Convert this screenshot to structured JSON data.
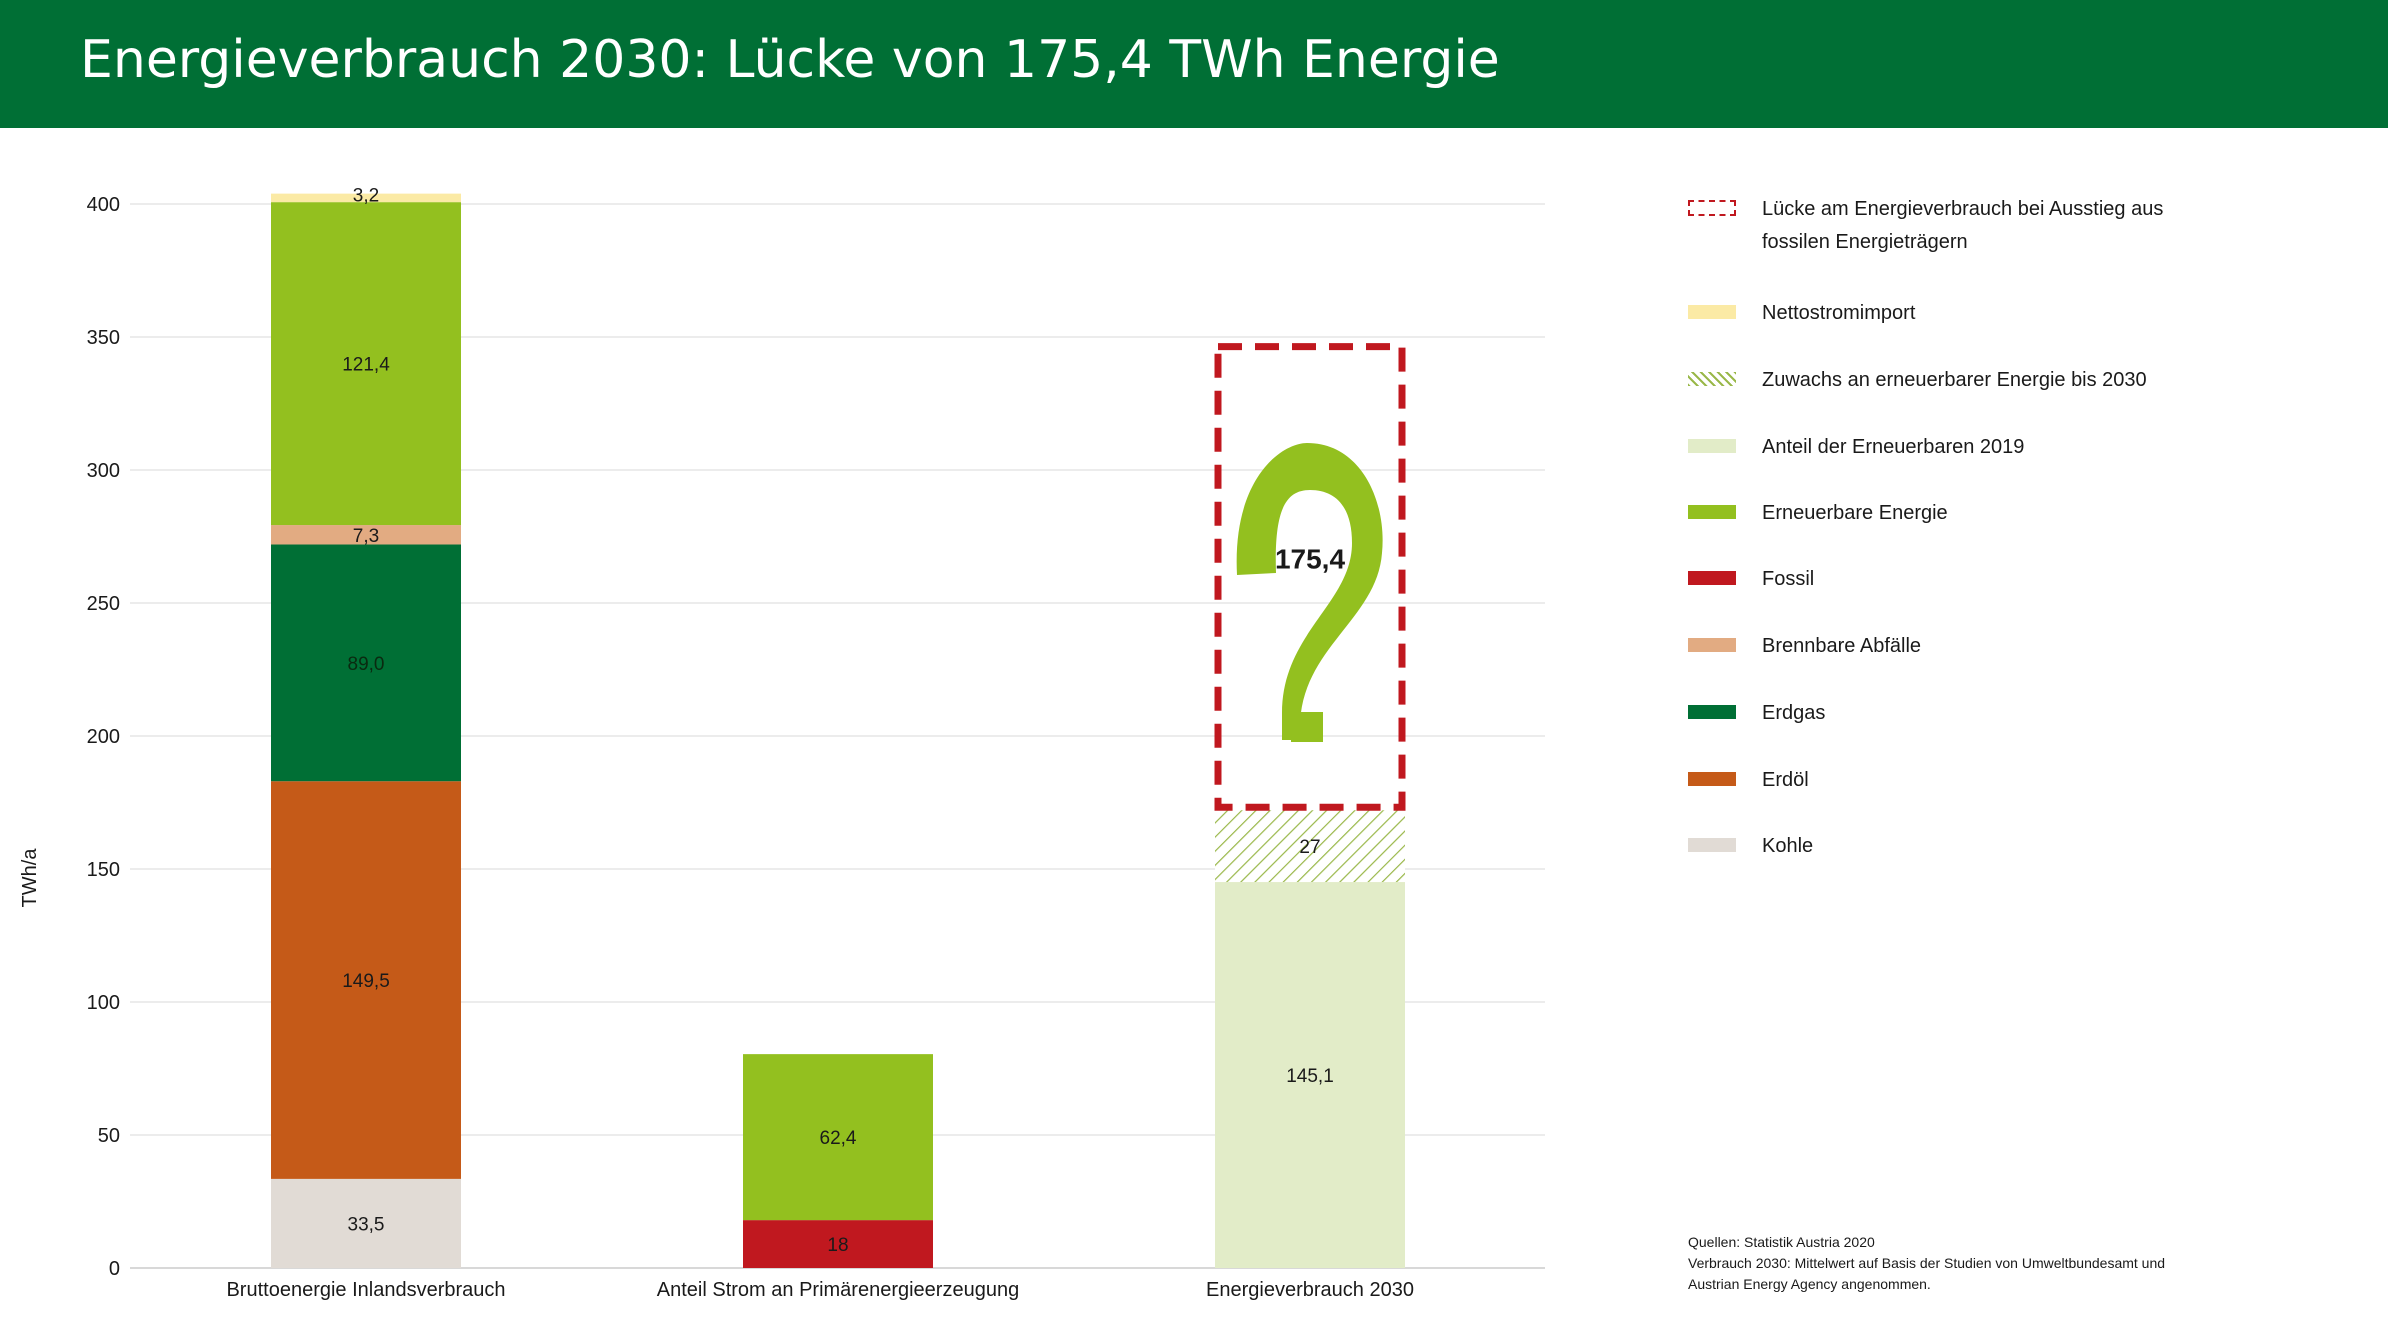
{
  "title": "Energieverbrauch 2030: Lücke von 175,4 TWh Energie",
  "colors": {
    "header": "#006f35",
    "Luecke": "#c0181f",
    "Nettostromimport": "#fbeaa5",
    "Zuwachs": "#9ab84a",
    "Anteil_Erneuerbare_2019": "#e2ecc8",
    "Erneuerbare": "#93c01f",
    "Fossil": "#c0181f",
    "Brennbare_Abfaelle": "#e2ab82",
    "Erdgas": "#006f35",
    "Erdoel": "#c55a18",
    "Kohle": "#e1dbd5",
    "grid": "#e6e6e6"
  },
  "legend": [
    {
      "label": "Lücke am Energieverbrauch bei Ausstieg aus fossilen Energieträgern",
      "swatch": "dashed",
      "color": "#c0181f"
    },
    {
      "label": "Nettostromimport",
      "swatch": "solid",
      "color": "#fbeaa5"
    },
    {
      "label": "Zuwachs an erneuerbarer Energie bis 2030",
      "swatch": "hatch",
      "color": "#9ab84a"
    },
    {
      "label": "Anteil der Erneuerbaren 2019",
      "swatch": "solid",
      "color": "#e2ecc8"
    },
    {
      "label": "Erneuerbare Energie",
      "swatch": "solid",
      "color": "#93c01f"
    },
    {
      "label": "Fossil",
      "swatch": "solid",
      "color": "#c0181f"
    },
    {
      "label": "Brennbare Abfälle",
      "swatch": "solid",
      "color": "#e2ab82"
    },
    {
      "label": "Erdgas",
      "swatch": "solid",
      "color": "#006f35"
    },
    {
      "label": "Erdöl",
      "swatch": "solid",
      "color": "#c55a18"
    },
    {
      "label": "Kohle",
      "swatch": "solid",
      "color": "#e1dbd5"
    }
  ],
  "source": {
    "line1": "Quellen: Statistik Austria 2020",
    "line2": "Verbrauch 2030: Mittelwert auf Basis der Studien von Umweltbundesamt und",
    "line3": "Austrian Energy Agency angenommen."
  },
  "chart_data": {
    "type": "bar",
    "stacked": true,
    "ylabel": "TWh/a",
    "ylim": [
      0,
      400
    ],
    "yticks": [
      "0",
      "50",
      "100",
      "150",
      "200",
      "250",
      "300",
      "350",
      "400"
    ],
    "grid": true,
    "legend_position": "right",
    "categories": [
      "Bruttoenergie Inlandsverbrauch",
      "Anteil Strom an Primärenergieerzeugung",
      "Energieverbrauch 2030"
    ],
    "stacks": [
      {
        "category": "Bruttoenergie Inlandsverbrauch",
        "segments": [
          {
            "series": "Kohle",
            "value": 33.5,
            "label": "33,5",
            "color": "#e1dbd5",
            "style": "solid"
          },
          {
            "series": "Erdöl",
            "value": 149.5,
            "label": "149,5",
            "color": "#c55a18",
            "style": "solid"
          },
          {
            "series": "Erdgas",
            "value": 89.0,
            "label": "89,0",
            "color": "#006f35",
            "style": "solid"
          },
          {
            "series": "Brennbare Abfälle",
            "value": 7.3,
            "label": "7,3",
            "color": "#e2ab82",
            "style": "solid"
          },
          {
            "series": "Erneuerbare Energie",
            "value": 121.4,
            "label": "121,4",
            "color": "#93c01f",
            "style": "solid"
          },
          {
            "series": "Nettostromimport",
            "value": 3.2,
            "label": "3,2",
            "color": "#fbeaa5",
            "style": "solid"
          }
        ]
      },
      {
        "category": "Anteil Strom an Primärenergieerzeugung",
        "segments": [
          {
            "series": "Fossil",
            "value": 18,
            "label": "18",
            "color": "#c0181f",
            "style": "solid"
          },
          {
            "series": "Erneuerbare Energie",
            "value": 62.4,
            "label": "62,4",
            "color": "#93c01f",
            "style": "solid"
          }
        ]
      },
      {
        "category": "Energieverbrauch 2030",
        "segments": [
          {
            "series": "Anteil der Erneuerbaren 2019",
            "value": 145.1,
            "label": "145,1",
            "color": "#e2ecc8",
            "style": "solid"
          },
          {
            "series": "Zuwachs an erneuerbarer Energie bis 2030",
            "value": 27,
            "label": "27",
            "color": "#9ab84a",
            "style": "hatch"
          },
          {
            "series": "Lücke am Energieverbrauch bei Ausstieg aus fossilen Energieträgern",
            "value": 175.4,
            "label": "175,4",
            "color": "#c0181f",
            "style": "dashed"
          }
        ]
      }
    ]
  }
}
